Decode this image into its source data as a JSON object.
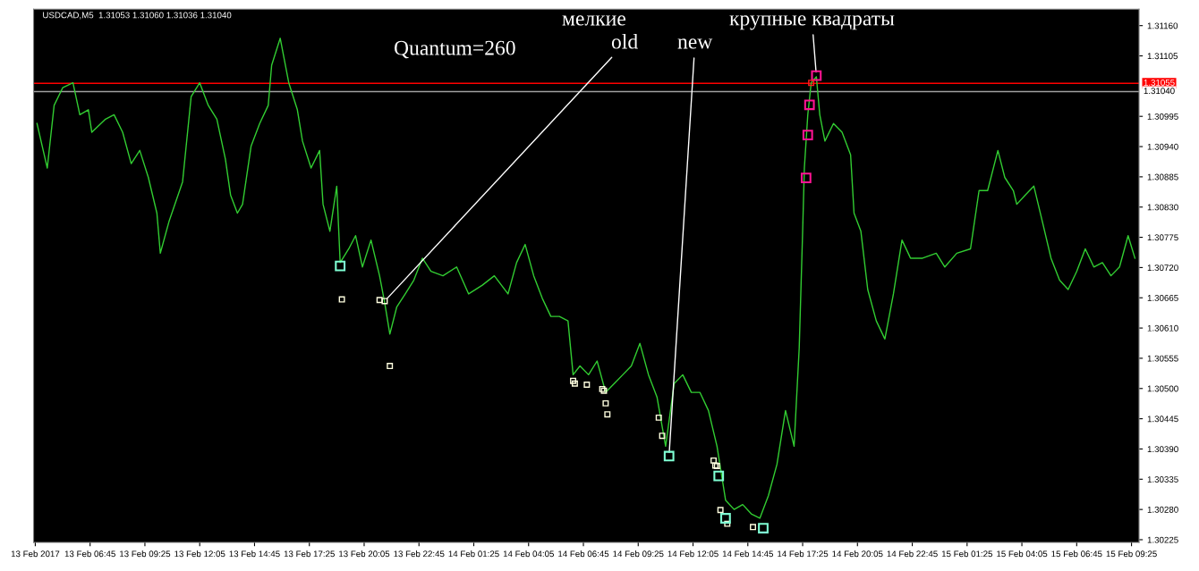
{
  "chart_data": {
    "type": "line",
    "title": "USDCAD,M5  1.31053 1.31060 1.31036 1.31040",
    "annotations": [
      "Quantum=260",
      "мелкие",
      {
        "text": "old",
        "x": "2017-02-13T21:05",
        "y": 1.30659
      },
      {
        "text": "new",
        "x": "2017-02-14T10:55",
        "y": 1.30377
      },
      {
        "text": "крупные квадраты",
        "x": "2017-02-14T18:05",
        "y": 1.31069
      }
    ],
    "series": [
      {
        "color": "#32cd32",
        "marker": "none",
        "x": [
          "2017-02-13T04:10",
          "2017-02-13T04:40",
          "2017-02-13T05:00",
          "2017-02-13T05:25",
          "2017-02-13T05:55",
          "2017-02-13T06:15",
          "2017-02-13T06:40",
          "2017-02-13T06:50",
          "2017-02-13T07:30",
          "2017-02-13T07:55",
          "2017-02-13T08:20",
          "2017-02-13T08:45",
          "2017-02-13T09:10",
          "2017-02-13T09:35",
          "2017-02-13T10:00",
          "2017-02-13T10:10",
          "2017-02-13T10:35",
          "2017-02-13T11:15",
          "2017-02-13T11:40",
          "2017-02-13T12:05",
          "2017-02-13T12:30",
          "2017-02-13T12:55",
          "2017-02-13T13:20",
          "2017-02-13T13:35",
          "2017-02-13T13:55",
          "2017-02-13T14:10",
          "2017-02-13T14:35",
          "2017-02-13T15:00",
          "2017-02-13T15:25",
          "2017-02-13T15:35",
          "2017-02-13T16:00",
          "2017-02-13T16:25",
          "2017-02-13T16:50",
          "2017-02-13T17:05",
          "2017-02-13T17:30",
          "2017-02-13T17:55",
          "2017-02-13T18:05",
          "2017-02-13T18:25",
          "2017-02-13T18:45",
          "2017-02-13T18:55",
          "2017-02-13T19:20",
          "2017-02-13T19:40",
          "2017-02-13T20:00",
          "2017-02-13T20:25",
          "2017-02-13T20:50",
          "2017-02-13T21:05",
          "2017-02-13T21:20",
          "2017-02-13T21:40",
          "2017-02-13T22:05",
          "2017-02-13T22:30",
          "2017-02-13T22:55",
          "2017-02-13T23:20",
          "2017-02-13T23:55",
          "2017-02-14T00:35",
          "2017-02-14T01:10",
          "2017-02-14T01:50",
          "2017-02-14T02:25",
          "2017-02-14T03:05",
          "2017-02-14T03:30",
          "2017-02-14T03:55",
          "2017-02-14T04:20",
          "2017-02-14T04:45",
          "2017-02-14T05:10",
          "2017-02-14T05:35",
          "2017-02-14T06:00",
          "2017-02-14T06:15",
          "2017-02-14T06:35",
          "2017-02-14T07:00",
          "2017-02-14T07:25",
          "2017-02-14T07:50",
          "2017-02-14T08:15",
          "2017-02-14T08:40",
          "2017-02-14T09:05",
          "2017-02-14T09:30",
          "2017-02-14T09:55",
          "2017-02-14T10:20",
          "2017-02-14T10:45",
          "2017-02-14T11:10",
          "2017-02-14T11:35",
          "2017-02-14T12:00",
          "2017-02-14T12:25",
          "2017-02-14T12:50",
          "2017-02-14T13:15",
          "2017-02-14T13:40",
          "2017-02-14T14:05",
          "2017-02-14T14:30",
          "2017-02-14T14:55",
          "2017-02-14T15:20",
          "2017-02-14T15:45",
          "2017-02-14T16:10",
          "2017-02-14T16:35",
          "2017-02-14T17:00",
          "2017-02-14T17:15",
          "2017-02-14T17:25",
          "2017-02-14T17:30",
          "2017-02-14T17:40",
          "2017-02-14T17:50",
          "2017-02-14T18:05",
          "2017-02-14T18:15",
          "2017-02-14T18:30",
          "2017-02-14T18:55",
          "2017-02-14T19:20",
          "2017-02-14T19:45",
          "2017-02-14T19:55",
          "2017-02-14T20:15",
          "2017-02-14T20:35",
          "2017-02-14T21:00",
          "2017-02-14T21:25",
          "2017-02-14T21:50",
          "2017-02-14T22:15",
          "2017-02-14T22:40",
          "2017-02-14T23:15",
          "2017-02-14T23:55",
          "2017-02-15T00:20",
          "2017-02-15T00:55",
          "2017-02-15T01:35",
          "2017-02-15T02:00",
          "2017-02-15T02:25",
          "2017-02-15T02:55",
          "2017-02-15T03:15",
          "2017-02-15T03:40",
          "2017-02-15T03:50",
          "2017-02-15T04:15",
          "2017-02-15T04:40",
          "2017-02-15T05:05",
          "2017-02-15T05:30",
          "2017-02-15T05:55",
          "2017-02-15T06:20",
          "2017-02-15T06:45",
          "2017-02-15T07:10",
          "2017-02-15T07:35",
          "2017-02-15T08:00",
          "2017-02-15T08:25",
          "2017-02-15T08:50",
          "2017-02-15T09:15",
          "2017-02-15T09:35"
        ],
        "values": [
          1.30982,
          1.30901,
          1.31015,
          1.31047,
          1.31056,
          1.30998,
          1.31007,
          1.30966,
          1.3099,
          1.30998,
          1.30966,
          1.30909,
          1.30933,
          1.30884,
          1.30819,
          1.30746,
          1.30803,
          1.30876,
          1.31031,
          1.31056,
          1.31015,
          1.3099,
          1.30917,
          1.30852,
          1.30819,
          1.30835,
          1.30941,
          1.30982,
          1.31015,
          1.31088,
          1.31137,
          1.31056,
          1.31007,
          1.3095,
          1.30901,
          1.30933,
          1.30835,
          1.30786,
          1.30868,
          1.30729,
          1.30754,
          1.30778,
          1.30721,
          1.3077,
          1.30705,
          1.30656,
          1.30599,
          1.30648,
          1.30672,
          1.30697,
          1.30737,
          1.30713,
          1.30705,
          1.30721,
          1.30672,
          1.30688,
          1.30705,
          1.30672,
          1.30729,
          1.30762,
          1.30705,
          1.30664,
          1.30631,
          1.30631,
          1.30623,
          1.30525,
          1.30541,
          1.30525,
          1.3055,
          1.30493,
          1.30509,
          1.30525,
          1.30541,
          1.30582,
          1.30525,
          1.30484,
          1.30395,
          1.30509,
          1.30525,
          1.30493,
          1.30493,
          1.3046,
          1.30395,
          1.30297,
          1.3028,
          1.30289,
          1.30272,
          1.30264,
          1.30305,
          1.30362,
          1.3046,
          1.30395,
          1.30574,
          1.30786,
          1.30901,
          1.30998,
          1.31056,
          1.31067,
          1.30998,
          1.3095,
          1.30982,
          1.30966,
          1.30925,
          1.30819,
          1.30786,
          1.3068,
          1.30623,
          1.3059,
          1.30672,
          1.3077,
          1.30737,
          1.30737,
          1.30746,
          1.30721,
          1.30746,
          1.30754,
          1.3086,
          1.3086,
          1.30933,
          1.30884,
          1.3086,
          1.30835,
          1.30852,
          1.30868,
          1.30803,
          1.30737,
          1.30697,
          1.3068,
          1.30713,
          1.30754,
          1.30721,
          1.30729,
          1.30705,
          1.30721,
          1.30778,
          1.30737
        ]
      },
      {
        "type": "scatter",
        "color": "#ffffe0",
        "marker": "square",
        "x": [
          "2017-02-13T19:00",
          "2017-02-13T20:50",
          "2017-02-13T21:05",
          "2017-02-13T21:20",
          "2017-02-14T06:15",
          "2017-02-14T06:20",
          "2017-02-14T06:55",
          "2017-02-14T07:40",
          "2017-02-14T07:45",
          "2017-02-14T07:50",
          "2017-02-14T07:55",
          "2017-02-14T10:25",
          "2017-02-14T10:35",
          "2017-02-14T13:05",
          "2017-02-14T13:10",
          "2017-02-14T13:15",
          "2017-02-14T13:25",
          "2017-02-14T13:45",
          "2017-02-14T15:00"
        ],
        "values": [
          1.30662,
          1.30661,
          1.30659,
          1.30541,
          1.30514,
          1.30509,
          1.30507,
          1.30499,
          1.30496,
          1.30473,
          1.30453,
          1.30447,
          1.30414,
          1.30369,
          1.3036,
          1.30359,
          1.30279,
          1.30254,
          1.30248
        ]
      },
      {
        "type": "scatter",
        "color": "#7fffd4",
        "marker": "square",
        "x": [
          "2017-02-13T18:55",
          "2017-02-14T10:55",
          "2017-02-14T13:20",
          "2017-02-14T13:40",
          "2017-02-14T15:30"
        ],
        "values": [
          1.30723,
          1.30377,
          1.30341,
          1.30264,
          1.30246
        ]
      },
      {
        "type": "scatter",
        "color": "#ff1493",
        "marker": "square",
        "x": [
          "2017-02-14T18:05",
          "2017-02-14T17:45",
          "2017-02-14T17:40",
          "2017-02-14T17:35"
        ],
        "values": [
          1.31069,
          1.31016,
          1.30961,
          1.30883
        ]
      },
      {
        "type": "scatter",
        "color": "#ff2020",
        "marker": "square",
        "x": [
          "2017-02-14T17:50"
        ],
        "values": [
          1.31056
        ]
      }
    ],
    "ref_lines": [
      {
        "axis": "y",
        "value": 1.31055,
        "label": "1.31055",
        "color": "#ff0000"
      },
      {
        "axis": "y",
        "value": 1.3104,
        "label": "1.31040",
        "color": "#a0a0a0"
      }
    ],
    "xlim": [
      "2017-02-13T04:00",
      "2017-02-15T09:47"
    ],
    "ylim": [
      1.3022,
      1.3119
    ],
    "xticks": [
      {
        "value": "2017-02-13T04:05",
        "label": "13 Feb 2017"
      },
      {
        "value": "2017-02-13T06:45",
        "label": "13 Feb 06:45"
      },
      {
        "value": "2017-02-13T09:25",
        "label": "13 Feb 09:25"
      },
      {
        "value": "2017-02-13T12:05",
        "label": "13 Feb 12:05"
      },
      {
        "value": "2017-02-13T14:45",
        "label": "13 Feb 14:45"
      },
      {
        "value": "2017-02-13T17:25",
        "label": "13 Feb 17:25"
      },
      {
        "value": "2017-02-13T20:05",
        "label": "13 Feb 20:05"
      },
      {
        "value": "2017-02-13T22:45",
        "label": "13 Feb 22:45"
      },
      {
        "value": "2017-02-14T01:25",
        "label": "14 Feb 01:25"
      },
      {
        "value": "2017-02-14T04:05",
        "label": "14 Feb 04:05"
      },
      {
        "value": "2017-02-14T06:45",
        "label": "14 Feb 06:45"
      },
      {
        "value": "2017-02-14T09:25",
        "label": "14 Feb 09:25"
      },
      {
        "value": "2017-02-14T12:05",
        "label": "14 Feb 12:05"
      },
      {
        "value": "2017-02-14T14:45",
        "label": "14 Feb 14:45"
      },
      {
        "value": "2017-02-14T17:25",
        "label": "14 Feb 17:25"
      },
      {
        "value": "2017-02-14T20:05",
        "label": "14 Feb 20:05"
      },
      {
        "value": "2017-02-14T22:45",
        "label": "14 Feb 22:45"
      },
      {
        "value": "2017-02-15T01:25",
        "label": "15 Feb 01:25"
      },
      {
        "value": "2017-02-15T04:05",
        "label": "15 Feb 04:05"
      },
      {
        "value": "2017-02-15T06:45",
        "label": "15 Feb 06:45"
      },
      {
        "value": "2017-02-15T09:25",
        "label": "15 Feb 09:25"
      }
    ],
    "yticks": [
      {
        "value": 1.3116,
        "label": "1.31160"
      },
      {
        "value": 1.31105,
        "label": "1.31105"
      },
      {
        "value": 1.30995,
        "label": "1.30995"
      },
      {
        "value": 1.3094,
        "label": "1.30940"
      },
      {
        "value": 1.30885,
        "label": "1.30885"
      },
      {
        "value": 1.3083,
        "label": "1.30830"
      },
      {
        "value": 1.30775,
        "label": "1.30775"
      },
      {
        "value": 1.3072,
        "label": "1.30720"
      },
      {
        "value": 1.30665,
        "label": "1.30665"
      },
      {
        "value": 1.3061,
        "label": "1.30610"
      },
      {
        "value": 1.30555,
        "label": "1.30555"
      },
      {
        "value": 1.305,
        "label": "1.30500"
      },
      {
        "value": 1.30445,
        "label": "1.30445"
      },
      {
        "value": 1.3039,
        "label": "1.30390"
      },
      {
        "value": 1.30335,
        "label": "1.30335"
      },
      {
        "value": 1.3028,
        "label": "1.30280"
      },
      {
        "value": 1.30225,
        "label": "1.30225"
      }
    ],
    "grid": false,
    "legend": false
  }
}
